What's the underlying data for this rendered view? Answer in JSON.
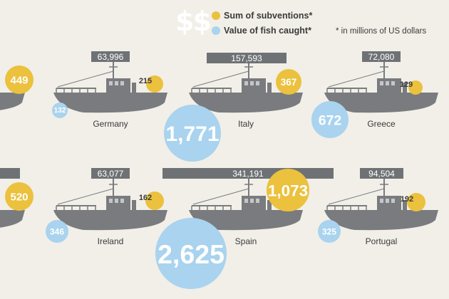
{
  "legend": {
    "currency_symbol": "$$",
    "subventions_label": "Sum of subventions*",
    "fish_label": "Value of fish caught*",
    "note": "* in millions of US dollars"
  },
  "colors": {
    "background": "#f1efe8",
    "subventions": "#ebc13d",
    "fish": "#a9d3ee",
    "boat": "#797b7e",
    "label_bar": "#6f7275"
  },
  "chart_data": {
    "type": "bubble",
    "title": "",
    "value_units": "millions of US dollars",
    "countries": [
      {
        "name": "",
        "top_value": "",
        "subventions": "449",
        "fish": "132"
      },
      {
        "name": "Germany",
        "top_value": "63,996",
        "subventions": "215",
        "fish": "132"
      },
      {
        "name": "Italy",
        "top_value": "157,593",
        "subventions": "367",
        "fish": "1,771"
      },
      {
        "name": "Greece",
        "top_value": "72,080",
        "subventions": "129",
        "fish": "672"
      },
      {
        "name": "",
        "top_value": "",
        "subventions": "520",
        "fish": ""
      },
      {
        "name": "Ireland",
        "top_value": "63,077",
        "subventions": "162",
        "fish": "346"
      },
      {
        "name": "Spain",
        "top_value": "341,191",
        "subventions": "1,073",
        "fish": "2,625"
      },
      {
        "name": "Portugal",
        "top_value": "94,504",
        "subventions": "192",
        "fish": "325"
      }
    ]
  }
}
